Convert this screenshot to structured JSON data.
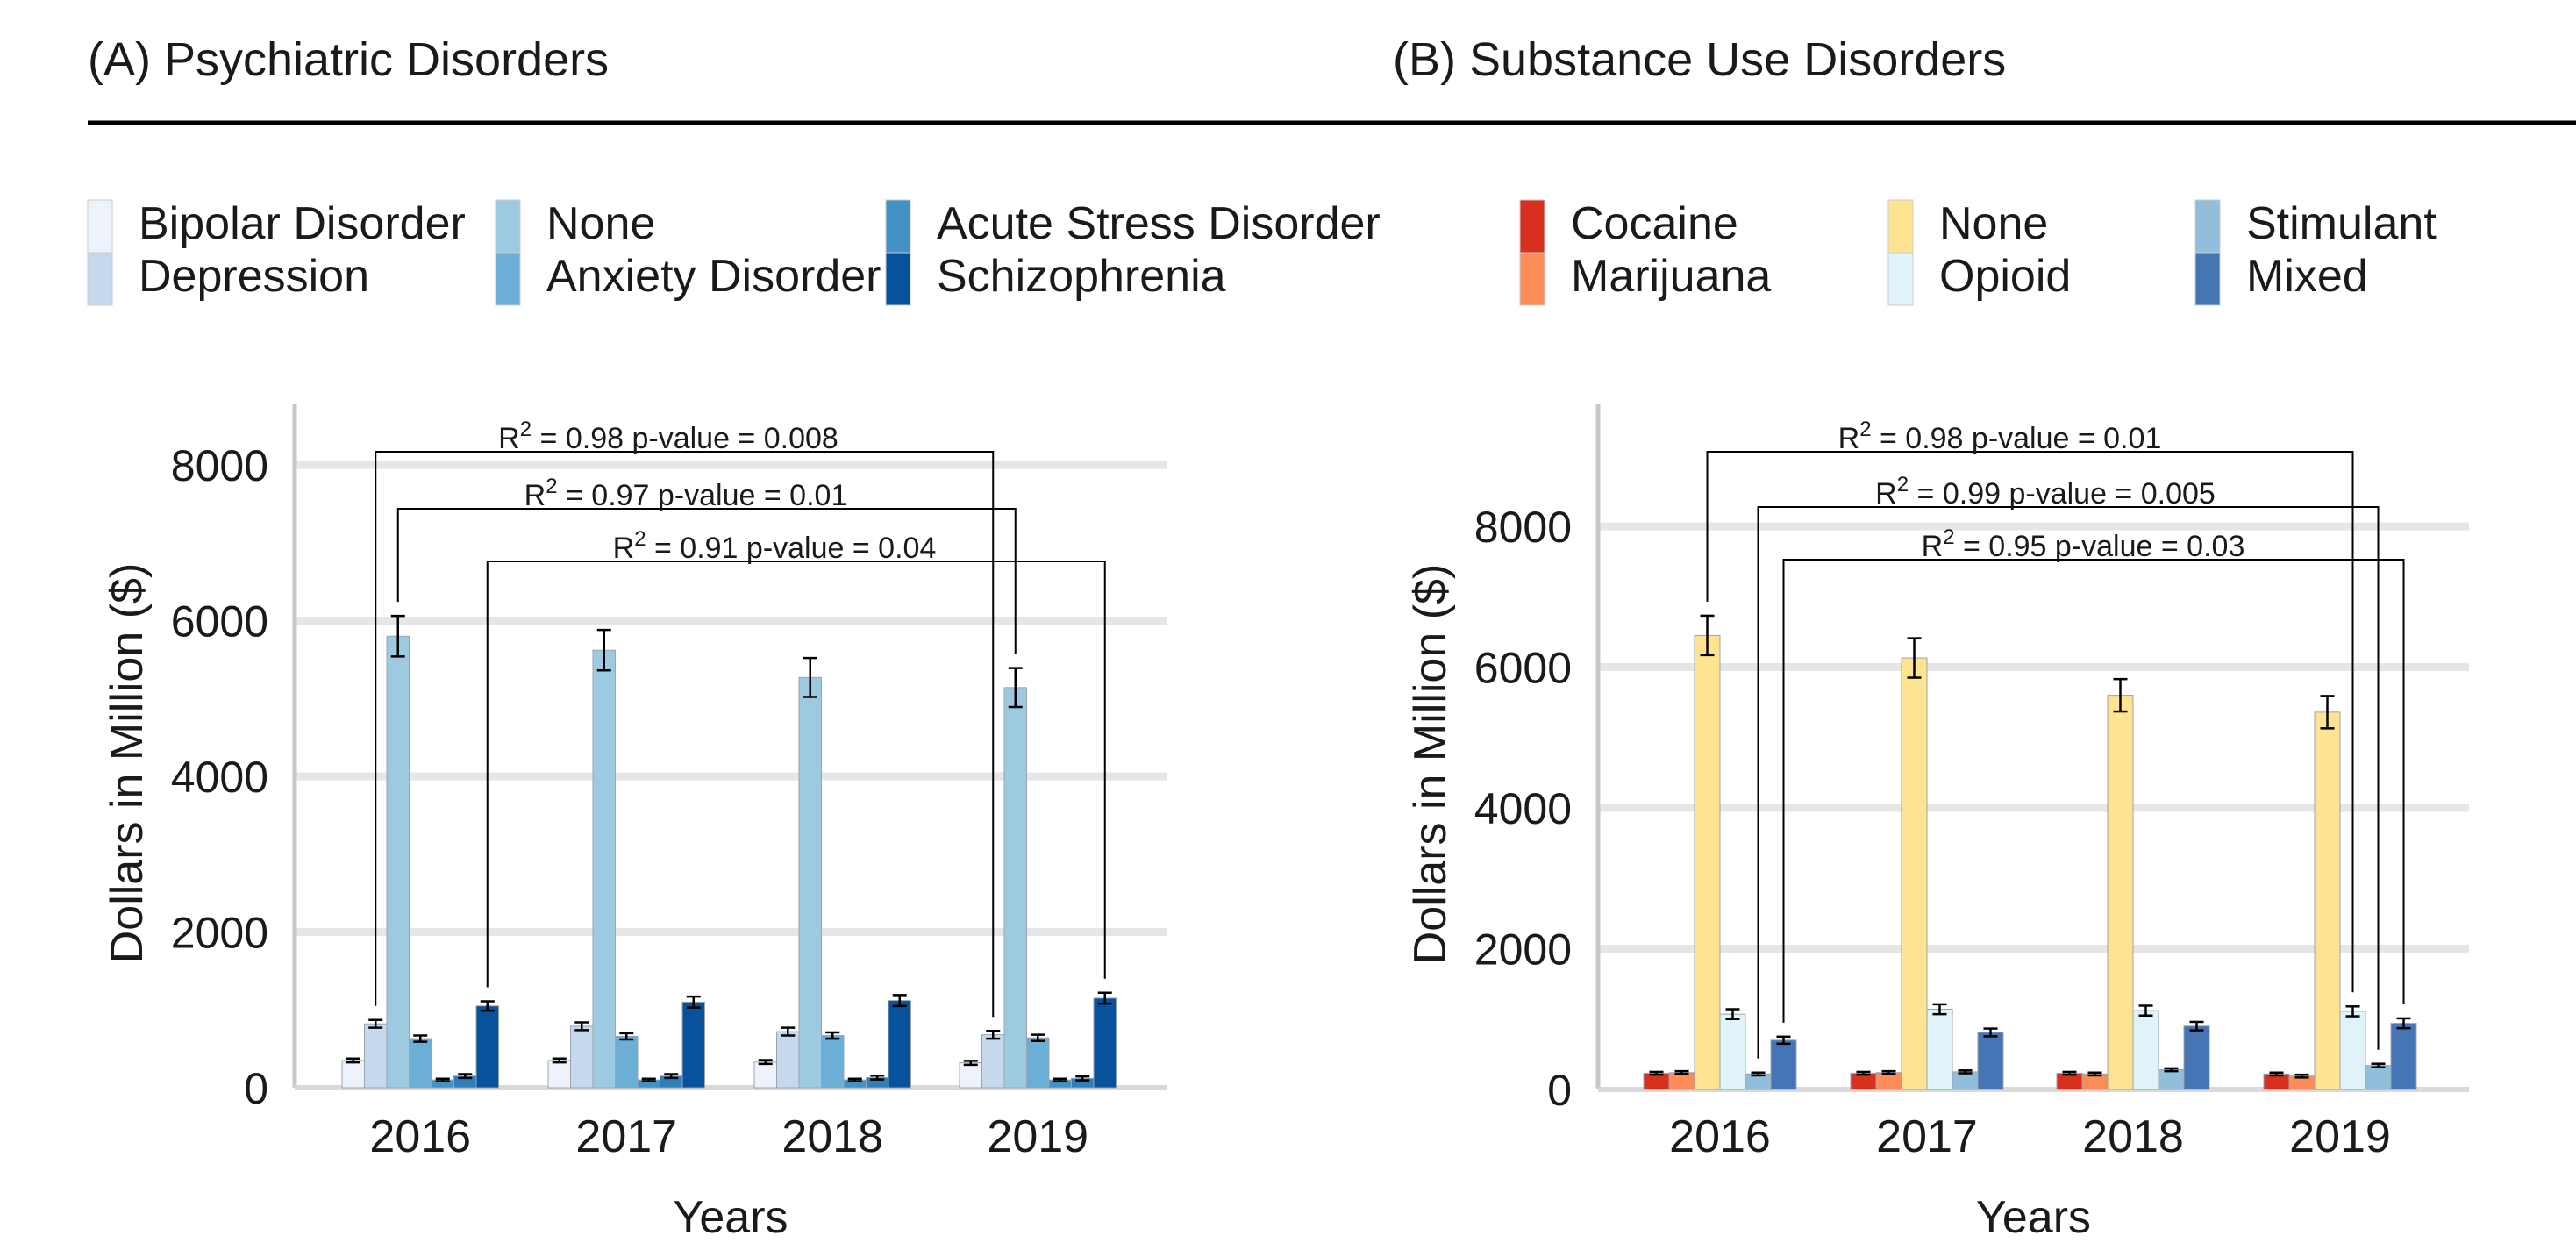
{
  "chart_data": [
    {
      "type": "bar",
      "title": "(A) Psychiatric Disorders",
      "xlabel": "Years",
      "ylabel": "Dollars in Million ($)",
      "ylim": [
        0,
        8000
      ],
      "yticks": [
        0,
        2000,
        4000,
        6000,
        8000
      ],
      "grid": true,
      "legend_position": "top",
      "categories": [
        "2016",
        "2017",
        "2018",
        "2019"
      ],
      "series": [
        {
          "name": "Bipolar Disorder",
          "color": "#eef2fb",
          "values": [
            350,
            350,
            330,
            320
          ],
          "errors": [
            25,
            25,
            25,
            25
          ]
        },
        {
          "name": "Depression",
          "color": "#c6d9ec",
          "values": [
            820,
            790,
            720,
            680
          ],
          "errors": [
            50,
            50,
            50,
            50
          ]
        },
        {
          "name": "None",
          "color": "#9ecae1",
          "values": [
            5800,
            5620,
            5270,
            5140
          ],
          "errors": [
            260,
            260,
            250,
            250
          ]
        },
        {
          "name": "Anxiety Disorder",
          "color": "#6baed6",
          "values": [
            630,
            660,
            670,
            640
          ],
          "errors": [
            40,
            40,
            40,
            40
          ]
        },
        {
          "name": "Acute Stress Disorder",
          "color": "#4292c6",
          "values": [
            100,
            100,
            100,
            100
          ],
          "errors": [
            15,
            15,
            15,
            15
          ]
        },
        {
          "name": "Anxiety Disorder",
          "color": "#2e7ebc",
          "values": [
            150,
            150,
            130,
            120
          ],
          "errors": [
            25,
            25,
            25,
            25
          ]
        },
        {
          "name": "Schizophrenia",
          "color": "#08519c",
          "values": [
            1050,
            1100,
            1120,
            1150
          ],
          "errors": [
            60,
            70,
            70,
            70
          ]
        }
      ],
      "annotations": [
        {
          "text": "R2 = 0.98 p-value = 0.008",
          "r2": "0.98",
          "p": "0.008"
        },
        {
          "text": "R2 = 0.97 p-value = 0.01",
          "r2": "0.97",
          "p": "0.01"
        },
        {
          "text": "R2 = 0.91 p-value = 0.04",
          "r2": "0.91",
          "p": "0.04"
        }
      ]
    },
    {
      "type": "bar",
      "title": "(B) Substance Use Disorders",
      "xlabel": "Years",
      "ylabel": "Dollars in Million ($)",
      "ylim": [
        0,
        9000
      ],
      "yticks": [
        0,
        2000,
        4000,
        6000,
        8000
      ],
      "grid": true,
      "legend_position": "top",
      "categories": [
        "2016",
        "2017",
        "2018",
        "2019"
      ],
      "series": [
        {
          "name": "Cocaine",
          "color": "#d7301f",
          "values": [
            230,
            230,
            230,
            220
          ],
          "errors": [
            20,
            20,
            20,
            20
          ]
        },
        {
          "name": "Marijuana",
          "color": "#fc8d59",
          "values": [
            240,
            240,
            220,
            190
          ],
          "errors": [
            20,
            20,
            20,
            20
          ]
        },
        {
          "name": "None",
          "color": "#fee391",
          "values": [
            6450,
            6130,
            5600,
            5360
          ],
          "errors": [
            280,
            280,
            230,
            230
          ]
        },
        {
          "name": "Opioid",
          "color": "#e0f3f8",
          "values": [
            1070,
            1140,
            1120,
            1110
          ],
          "errors": [
            70,
            70,
            70,
            70
          ]
        },
        {
          "name": "Stimulant",
          "color": "#91bfdb",
          "values": [
            220,
            250,
            280,
            340
          ],
          "errors": [
            20,
            20,
            20,
            25
          ]
        },
        {
          "name": "Mixed",
          "color": "#4575b4",
          "values": [
            700,
            810,
            900,
            940
          ],
          "errors": [
            50,
            55,
            60,
            70
          ]
        }
      ],
      "annotations": [
        {
          "text": "R2 = 0.98 p-value = 0.01",
          "r2": "0.98",
          "p": "0.01"
        },
        {
          "text": "R2 = 0.99 p-value = 0.005",
          "r2": "0.99",
          "p": "0.005"
        },
        {
          "text": "R2 = 0.95 p-value = 0.03",
          "r2": "0.95",
          "p": "0.03"
        }
      ]
    }
  ]
}
